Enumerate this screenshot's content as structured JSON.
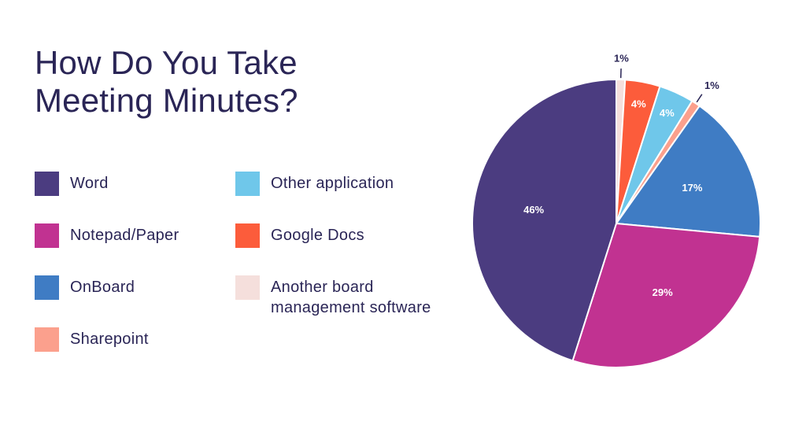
{
  "chart_data": {
    "type": "pie",
    "title_lines": [
      "How Do You Take",
      "Meeting Minutes?"
    ],
    "slices": [
      {
        "name": "Another board management software",
        "value": 1,
        "label": "1%",
        "color": "#f5dfdc",
        "label_color": "#2a2556"
      },
      {
        "name": "Google Docs",
        "value": 4,
        "label": "4%",
        "color": "#fc5c3b",
        "label_color": "#ffffff"
      },
      {
        "name": "Other application",
        "value": 4,
        "label": "4%",
        "color": "#6fc7ea",
        "label_color": "#ffffff"
      },
      {
        "name": "Sharepoint",
        "value": 1,
        "label": "1%",
        "color": "#fba08d",
        "label_color": "#2a2556"
      },
      {
        "name": "OnBoard",
        "value": 17,
        "label": "17%",
        "color": "#3f7cc4",
        "label_color": "#ffffff"
      },
      {
        "name": "Notepad/Paper",
        "value": 29,
        "label": "29%",
        "color": "#c13291",
        "label_color": "#ffffff"
      },
      {
        "name": "Word",
        "value": 46,
        "label": "46%",
        "color": "#4b3c80",
        "label_color": "#ffffff"
      }
    ],
    "legend": [
      {
        "label": "Word",
        "color": "#4b3c80"
      },
      {
        "label": "Notepad/Paper",
        "color": "#c13291"
      },
      {
        "label": "OnBoard",
        "color": "#3f7cc4"
      },
      {
        "label": "Sharepoint",
        "color": "#fba08d"
      },
      {
        "label": "Other application",
        "color": "#6fc7ea"
      },
      {
        "label": "Google Docs",
        "color": "#fc5c3b"
      },
      {
        "label_lines": [
          "Another board",
          "management software"
        ],
        "color": "#f5dfdc"
      }
    ],
    "legend_placement": "left"
  }
}
